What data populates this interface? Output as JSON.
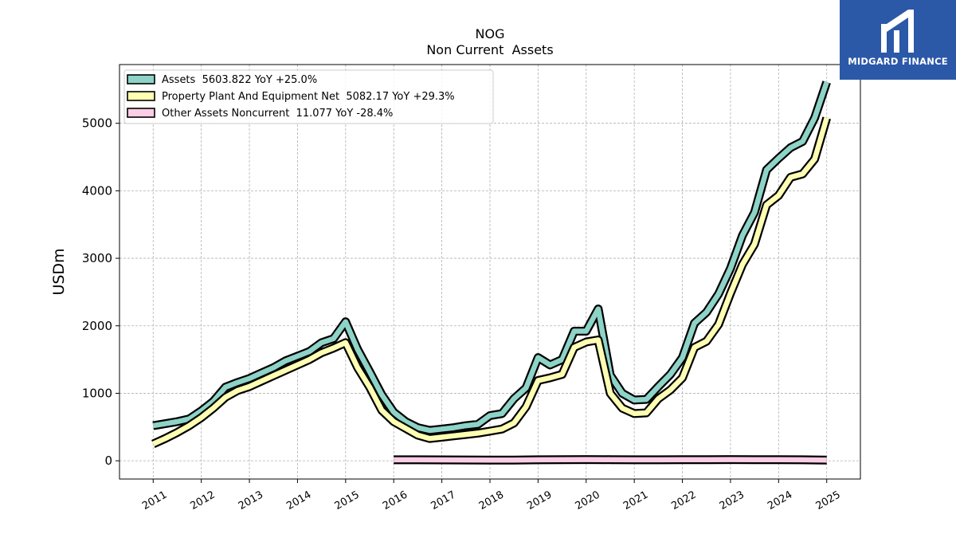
{
  "logo": {
    "text": "MIDGARD FINANCE",
    "bg_color": "#2c58a8"
  },
  "chart_data": {
    "type": "line",
    "title": "NOG",
    "subtitle": "Non Current  Assets",
    "ylabel": "USDm",
    "xlabel": "",
    "ylim": [
      -270,
      5870
    ],
    "xlim": [
      2010.3,
      2025.7
    ],
    "yticks": [
      0,
      1000,
      2000,
      3000,
      4000,
      5000
    ],
    "xticks": [
      2011,
      2012,
      2013,
      2014,
      2015,
      2016,
      2017,
      2018,
      2019,
      2020,
      2021,
      2022,
      2023,
      2024,
      2025
    ],
    "grid": true,
    "legend_position": "top-left",
    "series": [
      {
        "name": "Assets  5603.822 YoY +25.0%",
        "color": "#8dd3c7",
        "points": [
          [
            2011.0,
            520
          ],
          [
            2011.25,
            550
          ],
          [
            2011.5,
            580
          ],
          [
            2011.75,
            620
          ],
          [
            2012.0,
            740
          ],
          [
            2012.25,
            880
          ],
          [
            2012.5,
            1090
          ],
          [
            2012.75,
            1160
          ],
          [
            2013.0,
            1220
          ],
          [
            2013.25,
            1300
          ],
          [
            2013.5,
            1380
          ],
          [
            2013.75,
            1480
          ],
          [
            2014.0,
            1550
          ],
          [
            2014.25,
            1620
          ],
          [
            2014.5,
            1750
          ],
          [
            2014.75,
            1810
          ],
          [
            2015.0,
            2060
          ],
          [
            2015.25,
            1650
          ],
          [
            2015.5,
            1320
          ],
          [
            2015.75,
            980
          ],
          [
            2016.0,
            720
          ],
          [
            2016.25,
            580
          ],
          [
            2016.5,
            490
          ],
          [
            2016.75,
            450
          ],
          [
            2017.0,
            470
          ],
          [
            2017.25,
            490
          ],
          [
            2017.5,
            520
          ],
          [
            2017.75,
            540
          ],
          [
            2018.0,
            670
          ],
          [
            2018.25,
            700
          ],
          [
            2018.5,
            920
          ],
          [
            2018.75,
            1080
          ],
          [
            2019.0,
            1530
          ],
          [
            2019.25,
            1420
          ],
          [
            2019.5,
            1500
          ],
          [
            2019.75,
            1920
          ],
          [
            2020.0,
            1920
          ],
          [
            2020.25,
            2250
          ],
          [
            2020.5,
            1270
          ],
          [
            2020.75,
            1000
          ],
          [
            2021.0,
            900
          ],
          [
            2021.25,
            910
          ],
          [
            2021.5,
            1100
          ],
          [
            2021.75,
            1280
          ],
          [
            2022.0,
            1530
          ],
          [
            2022.25,
            2040
          ],
          [
            2022.5,
            2200
          ],
          [
            2022.75,
            2470
          ],
          [
            2023.0,
            2850
          ],
          [
            2023.25,
            3340
          ],
          [
            2023.5,
            3680
          ],
          [
            2023.75,
            4310
          ],
          [
            2024.0,
            4480
          ],
          [
            2024.25,
            4640
          ],
          [
            2024.5,
            4730
          ],
          [
            2024.75,
            5080
          ],
          [
            2025.0,
            5610
          ]
        ]
      },
      {
        "name": "Property Plant And Equipment Net  5082.17 YoY +29.3%",
        "color": "#ffffb3",
        "points": [
          [
            2011.0,
            250
          ],
          [
            2011.25,
            330
          ],
          [
            2011.5,
            420
          ],
          [
            2011.75,
            520
          ],
          [
            2012.0,
            640
          ],
          [
            2012.25,
            780
          ],
          [
            2012.5,
            940
          ],
          [
            2012.75,
            1040
          ],
          [
            2013.0,
            1100
          ],
          [
            2013.25,
            1180
          ],
          [
            2013.5,
            1260
          ],
          [
            2013.75,
            1340
          ],
          [
            2014.0,
            1420
          ],
          [
            2014.25,
            1500
          ],
          [
            2014.5,
            1600
          ],
          [
            2014.75,
            1670
          ],
          [
            2015.0,
            1750
          ],
          [
            2015.25,
            1380
          ],
          [
            2015.5,
            1090
          ],
          [
            2015.75,
            750
          ],
          [
            2016.0,
            580
          ],
          [
            2016.25,
            480
          ],
          [
            2016.5,
            380
          ],
          [
            2016.75,
            330
          ],
          [
            2017.0,
            350
          ],
          [
            2017.25,
            370
          ],
          [
            2017.5,
            390
          ],
          [
            2017.75,
            410
          ],
          [
            2018.0,
            440
          ],
          [
            2018.25,
            470
          ],
          [
            2018.5,
            560
          ],
          [
            2018.75,
            800
          ],
          [
            2019.0,
            1190
          ],
          [
            2019.25,
            1230
          ],
          [
            2019.5,
            1280
          ],
          [
            2019.75,
            1680
          ],
          [
            2020.0,
            1760
          ],
          [
            2020.25,
            1790
          ],
          [
            2020.5,
            1000
          ],
          [
            2020.75,
            780
          ],
          [
            2021.0,
            700
          ],
          [
            2021.25,
            710
          ],
          [
            2021.5,
            920
          ],
          [
            2021.75,
            1050
          ],
          [
            2022.0,
            1230
          ],
          [
            2022.25,
            1680
          ],
          [
            2022.5,
            1770
          ],
          [
            2022.75,
            2020
          ],
          [
            2023.0,
            2480
          ],
          [
            2023.25,
            2910
          ],
          [
            2023.5,
            3210
          ],
          [
            2023.75,
            3790
          ],
          [
            2024.0,
            3930
          ],
          [
            2024.25,
            4200
          ],
          [
            2024.5,
            4250
          ],
          [
            2024.75,
            4470
          ],
          [
            2025.0,
            5080
          ]
        ]
      },
      {
        "name": "Other Assets Noncurrent  11.077 YoY -28.4%",
        "color": "#fccde5",
        "points": [
          [
            2016.0,
            15
          ],
          [
            2016.5,
            14
          ],
          [
            2017.0,
            13
          ],
          [
            2017.5,
            12
          ],
          [
            2018.0,
            11
          ],
          [
            2018.5,
            10
          ],
          [
            2019.0,
            14
          ],
          [
            2019.5,
            16
          ],
          [
            2020.0,
            18
          ],
          [
            2020.5,
            17
          ],
          [
            2021.0,
            15
          ],
          [
            2021.5,
            14
          ],
          [
            2022.0,
            16
          ],
          [
            2022.5,
            17
          ],
          [
            2023.0,
            18
          ],
          [
            2023.5,
            17
          ],
          [
            2024.0,
            16
          ],
          [
            2024.5,
            15
          ],
          [
            2025.0,
            11
          ]
        ]
      }
    ]
  }
}
